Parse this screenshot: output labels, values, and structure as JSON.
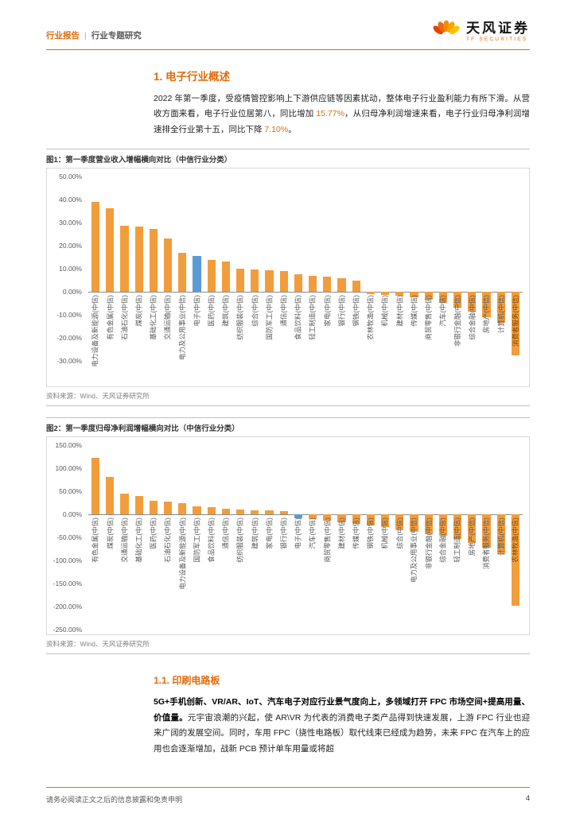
{
  "header": {
    "doc_type": "行业报告",
    "separator": "|",
    "doc_subtype": "行业专题研究",
    "brand_name": "天风证券",
    "brand_sub": "TF SECURITIES"
  },
  "section_overview": {
    "title": "1. 电子行业概述",
    "para": {
      "t1": "2022 年第一季度，受疫情管控影响上下游供应链等因素扰动，整体电子行业盈利能力有所下滑。从营收方面来看，电子行业位居第八，同比增加 ",
      "n1": "15.77%",
      "t2": "，从归母净利润增速来看，电子行业归母净利润增速排全行业第十五，同比下降 ",
      "n2": "7.10%",
      "t3": "。"
    }
  },
  "section_pcb": {
    "title": "1.1. 印刷电路板",
    "para": {
      "lead_bold": "5G+手机创新、VR/AR、IoT、汽车电子对应行业景气度向上，多领域打开 FPC 市场空间+提高用量、价值量。",
      "body": "元宇宙浪潮的兴起，使 AR\\VR 为代表的消费电子类产品得到快速发展，上游 FPC 行业也迎来广阔的发展空间。同时，车用 FPC（挠性电路板）取代线束已经成为趋势，未来 FPC 在汽车上的应用也会逐渐增加，战新 PCB 预计单车用量或将超"
    }
  },
  "footer": {
    "disclaimer": "请务必阅读正文之后的信息披露和免责申明",
    "page_number": "4"
  },
  "colors": {
    "accent": "#E36C0A",
    "bar": "#F29D3C",
    "bar_highlight": "#5B9BD5",
    "label_highlight_bg": "#F2A03E"
  },
  "chart_data": [
    {
      "type": "bar",
      "title": "图1：第一季度营业收入增幅横向对比（中信行业分类）",
      "source": "资料来源：Wind、天风证券研究所",
      "xlabel": "",
      "ylabel": "",
      "ylim": [
        -30,
        50
      ],
      "grid": false,
      "legend": "none",
      "ytick_labels": [
        "50.00%",
        "40.00%",
        "30.00%",
        "20.00%",
        "10.00%",
        "0.00%",
        "-10.00%",
        "-20.00%",
        "-30.00%"
      ],
      "ytick_values": [
        50,
        40,
        30,
        20,
        10,
        0,
        -10,
        -20,
        -30
      ],
      "categories": [
        "电力设备及新能源(中信)",
        "有色金属(中信)",
        "石油石化(中信)",
        "煤炭(中信)",
        "基础化工(中信)",
        "交通运输(中信)",
        "电力及公用事业(中信)",
        "电子(中信)",
        "医药(中信)",
        "建筑(中信)",
        "纺织服装(中信)",
        "综合(中信)",
        "国防军工(中信)",
        "通信(中信)",
        "食品饮料(中信)",
        "轻工制造(中信)",
        "家电(中信)",
        "银行(中信)",
        "钢铁(中信)",
        "农林牧渔(中信)",
        "机械(中信)",
        "建材(中信)",
        "传媒(中信)",
        "商贸零售(中信)",
        "汽车(中信)",
        "非银行金融(中信)",
        "综合金融(中信)",
        "房地产(中信)",
        "计算机(中信)",
        "消费者服务(中信)"
      ],
      "values": [
        38.9,
        36.2,
        28.7,
        28.2,
        27.5,
        23.3,
        17.1,
        15.77,
        14.0,
        13.2,
        10.2,
        9.8,
        9.4,
        9.0,
        7.8,
        7.1,
        6.6,
        5.9,
        5.0,
        -0.9,
        -1.3,
        -1.8,
        -2.3,
        -3.2,
        -4.9,
        -6.8,
        -8.7,
        -10.9,
        -13.4,
        -27.6
      ],
      "highlight_category": "电子(中信)",
      "highlight_index": 7,
      "last_label_highlighted": true
    },
    {
      "type": "bar",
      "title": "图2：第一季度归母净利润增幅横向对比（中信行业分类）",
      "source": "资料来源：Wind、天风证券研究所",
      "xlabel": "",
      "ylabel": "",
      "ylim": [
        -250,
        150
      ],
      "grid": false,
      "legend": "none",
      "ytick_labels": [
        "150.00%",
        "100.00%",
        "50.00%",
        "0.00%",
        "-50.00%",
        "-100.00%",
        "-150.00%",
        "-200.00%",
        "-250.00%"
      ],
      "ytick_values": [
        150,
        100,
        50,
        0,
        -50,
        -100,
        -150,
        -200,
        -250
      ],
      "categories": [
        "有色金属(中信)",
        "煤炭(中信)",
        "交通运输(中信)",
        "基础化工(中信)",
        "医药(中信)",
        "石油石化(中信)",
        "电力设备及新能源(中信)",
        "国防军工(中信)",
        "食品饮料(中信)",
        "通信(中信)",
        "纺织服装(中信)",
        "建筑(中信)",
        "家电(中信)",
        "银行(中信)",
        "电子(中信)",
        "汽车(中信)",
        "商贸零售(中信)",
        "建材(中信)",
        "传媒(中信)",
        "钢铁(中信)",
        "机械(中信)",
        "综合(中信)",
        "电力及公用事业(中信)",
        "非银行金融(中信)",
        "综合金融(中信)",
        "轻工制造(中信)",
        "房地产(中信)",
        "消费者服务(中信)",
        "计算机(中信)",
        "农林牧渔(中信)"
      ],
      "values": [
        122.9,
        81.5,
        45.2,
        40.1,
        30.8,
        28.0,
        24.3,
        18.2,
        15.6,
        13.1,
        11.8,
        10.2,
        9.0,
        7.9,
        -7.1,
        -10.2,
        -13.8,
        -17.1,
        -20.4,
        -23.3,
        -26.5,
        -31.2,
        -37.8,
        -42.6,
        -46.3,
        -52.1,
        -61.8,
        -72.4,
        -85.0,
        -198.3
      ],
      "highlight_category": "电子(中信)",
      "highlight_index": 14,
      "last_label_highlighted": true
    }
  ]
}
